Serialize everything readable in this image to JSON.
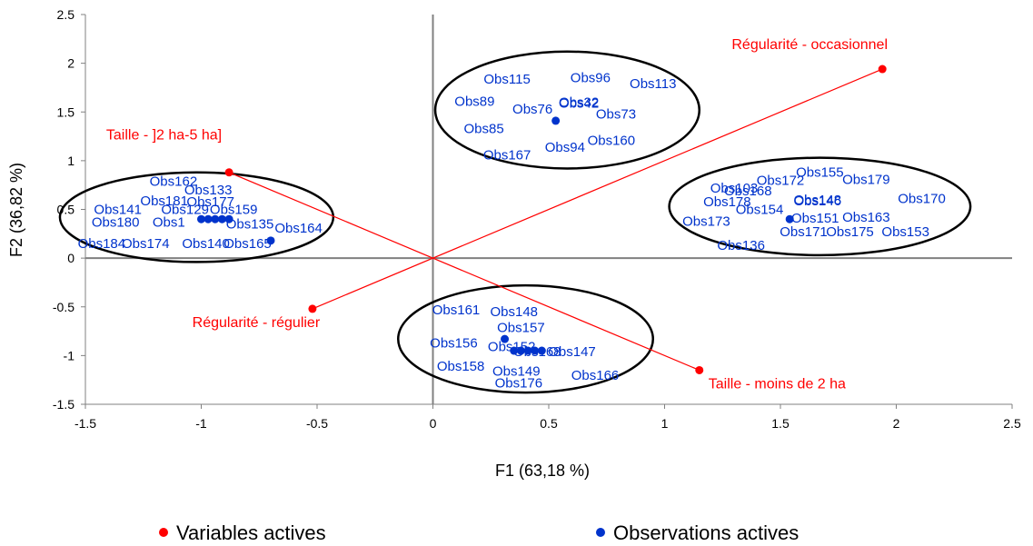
{
  "chart_data": {
    "type": "scatter",
    "xlabel": "F1 (63,18 %)",
    "ylabel": "F2 (36,82 %)",
    "xlim": [
      -1.5,
      2.5
    ],
    "ylim": [
      -1.5,
      2.5
    ],
    "xticks": [
      -1.5,
      -1,
      -0.5,
      0,
      0.5,
      1,
      1.5,
      2,
      2.5
    ],
    "yticks": [
      -1.5,
      -1,
      -0.5,
      0,
      0.5,
      1,
      1.5,
      2,
      2.5
    ],
    "xtick_labels": [
      "-1.5",
      "-1",
      "-0.5",
      "0",
      "0.5",
      "1",
      "1.5",
      "2",
      "2.5"
    ],
    "ytick_labels": [
      "-1.5",
      "-1",
      "-0.5",
      "0",
      "0.5",
      "1",
      "1.5",
      "2",
      "2.5"
    ],
    "grid": false,
    "legend_position": "bottom",
    "colors": {
      "variables": "#ff0000",
      "observations": "#0033cc"
    },
    "variables": {
      "name": "Variables actives",
      "lines": [
        {
          "from": "Taille - ]2 ha-5 ha]",
          "to": "Taille - moins de 2 ha"
        },
        {
          "from": "Régularité - régulier",
          "to": "Régularité - occasionnel"
        }
      ],
      "points": [
        {
          "label": "Régularité - occasionnel",
          "x": 1.94,
          "y": 1.94
        },
        {
          "label": "Taille - ]2 ha-5 ha]",
          "x": -0.88,
          "y": 0.88
        },
        {
          "label": "Régularité - régulier",
          "x": -0.52,
          "y": -0.52
        },
        {
          "label": "Taille - moins de 2 ha",
          "x": 1.15,
          "y": -1.15
        }
      ]
    },
    "observations": {
      "name": "Observations actives",
      "points": [
        {
          "x": 0.53,
          "y": 1.41
        },
        {
          "x": -0.7,
          "y": 0.18
        },
        {
          "x": 1.54,
          "y": 0.4
        },
        {
          "x": 0.31,
          "y": -0.83
        },
        {
          "x": -1.0,
          "y": 0.4
        },
        {
          "x": -0.97,
          "y": 0.4
        },
        {
          "x": -0.94,
          "y": 0.4
        },
        {
          "x": -0.91,
          "y": 0.4
        },
        {
          "x": -0.88,
          "y": 0.4
        },
        {
          "x": 0.35,
          "y": -0.95
        },
        {
          "x": 0.38,
          "y": -0.95
        },
        {
          "x": 0.41,
          "y": -0.95
        },
        {
          "x": 0.44,
          "y": -0.95
        },
        {
          "x": 0.47,
          "y": -0.95
        }
      ],
      "labels": [
        {
          "text": "Obs115",
          "x": 0.32,
          "y": 1.84
        },
        {
          "text": "Obs96",
          "x": 0.68,
          "y": 1.85
        },
        {
          "text": "Obs113",
          "x": 0.95,
          "y": 1.79
        },
        {
          "text": "Obs89",
          "x": 0.18,
          "y": 1.61
        },
        {
          "text": "Obs76",
          "x": 0.43,
          "y": 1.53
        },
        {
          "text": "Obs42",
          "x": 0.63,
          "y": 1.59
        },
        {
          "text": "Obs32",
          "x": 0.63,
          "y": 1.6
        },
        {
          "text": "Obs73",
          "x": 0.79,
          "y": 1.48
        },
        {
          "text": "Obs85",
          "x": 0.22,
          "y": 1.33
        },
        {
          "text": "Obs160",
          "x": 0.77,
          "y": 1.21
        },
        {
          "text": "Obs94",
          "x": 0.57,
          "y": 1.14
        },
        {
          "text": "Obs167",
          "x": 0.32,
          "y": 1.06
        },
        {
          "text": "Obs162",
          "x": -1.12,
          "y": 0.79
        },
        {
          "text": "Obs133",
          "x": -0.97,
          "y": 0.7
        },
        {
          "text": "Obs181",
          "x": -1.16,
          "y": 0.59
        },
        {
          "text": "Obs177",
          "x": -0.96,
          "y": 0.58
        },
        {
          "text": "Obs141",
          "x": -1.36,
          "y": 0.5
        },
        {
          "text": "Obs129",
          "x": -1.07,
          "y": 0.5
        },
        {
          "text": "Obs159",
          "x": -0.86,
          "y": 0.5
        },
        {
          "text": "Obs180",
          "x": -1.37,
          "y": 0.37
        },
        {
          "text": "Obs1",
          "x": -1.14,
          "y": 0.37
        },
        {
          "text": "Obs135",
          "x": -0.79,
          "y": 0.35
        },
        {
          "text": "Obs164",
          "x": -0.58,
          "y": 0.31
        },
        {
          "text": "Obs184",
          "x": -1.43,
          "y": 0.15
        },
        {
          "text": "Obs174",
          "x": -1.24,
          "y": 0.15
        },
        {
          "text": "Obs140",
          "x": -0.98,
          "y": 0.15
        },
        {
          "text": "Obs165",
          "x": -0.8,
          "y": 0.15
        },
        {
          "text": "Obs155",
          "x": 1.67,
          "y": 0.88
        },
        {
          "text": "Obs179",
          "x": 1.87,
          "y": 0.81
        },
        {
          "text": "Obs172",
          "x": 1.5,
          "y": 0.8
        },
        {
          "text": "Obs103",
          "x": 1.3,
          "y": 0.72
        },
        {
          "text": "Obs168",
          "x": 1.36,
          "y": 0.69
        },
        {
          "text": "Obs170",
          "x": 2.11,
          "y": 0.61
        },
        {
          "text": "Obs178",
          "x": 1.27,
          "y": 0.58
        },
        {
          "text": "Obs146",
          "x": 1.66,
          "y": 0.59
        },
        {
          "text": "Obs148",
          "x": 1.66,
          "y": 0.6
        },
        {
          "text": "Obs154",
          "x": 1.41,
          "y": 0.5
        },
        {
          "text": "Obs173",
          "x": 1.18,
          "y": 0.38
        },
        {
          "text": "Obs151",
          "x": 1.65,
          "y": 0.41
        },
        {
          "text": "Obs163",
          "x": 1.87,
          "y": 0.42
        },
        {
          "text": "Obs171",
          "x": 1.6,
          "y": 0.27
        },
        {
          "text": "Obs175",
          "x": 1.8,
          "y": 0.27
        },
        {
          "text": "Obs153",
          "x": 2.04,
          "y": 0.27
        },
        {
          "text": "Obs136",
          "x": 1.33,
          "y": 0.13
        },
        {
          "text": "Obs161",
          "x": 0.1,
          "y": -0.53
        },
        {
          "text": "Obs148",
          "x": 0.35,
          "y": -0.55
        },
        {
          "text": "Obs157",
          "x": 0.38,
          "y": -0.71
        },
        {
          "text": "Obs156",
          "x": 0.09,
          "y": -0.87
        },
        {
          "text": "Obs152",
          "x": 0.34,
          "y": -0.91
        },
        {
          "text": "Obs168",
          "x": 0.45,
          "y": -0.96
        },
        {
          "text": "Obs147",
          "x": 0.6,
          "y": -0.96
        },
        {
          "text": "Obs158",
          "x": 0.12,
          "y": -1.11
        },
        {
          "text": "Obs149",
          "x": 0.36,
          "y": -1.16
        },
        {
          "text": "Obs166",
          "x": 0.7,
          "y": -1.2
        },
        {
          "text": "Obs176",
          "x": 0.37,
          "y": -1.28
        }
      ]
    },
    "ellipses": [
      {
        "cx": 0.58,
        "cy": 1.52,
        "rx": 0.57,
        "ry": 0.6
      },
      {
        "cx": -1.02,
        "cy": 0.42,
        "rx": 0.59,
        "ry": 0.46
      },
      {
        "cx": 1.67,
        "cy": 0.53,
        "rx": 0.65,
        "ry": 0.5
      },
      {
        "cx": 0.4,
        "cy": -0.83,
        "rx": 0.55,
        "ry": 0.55
      }
    ]
  }
}
